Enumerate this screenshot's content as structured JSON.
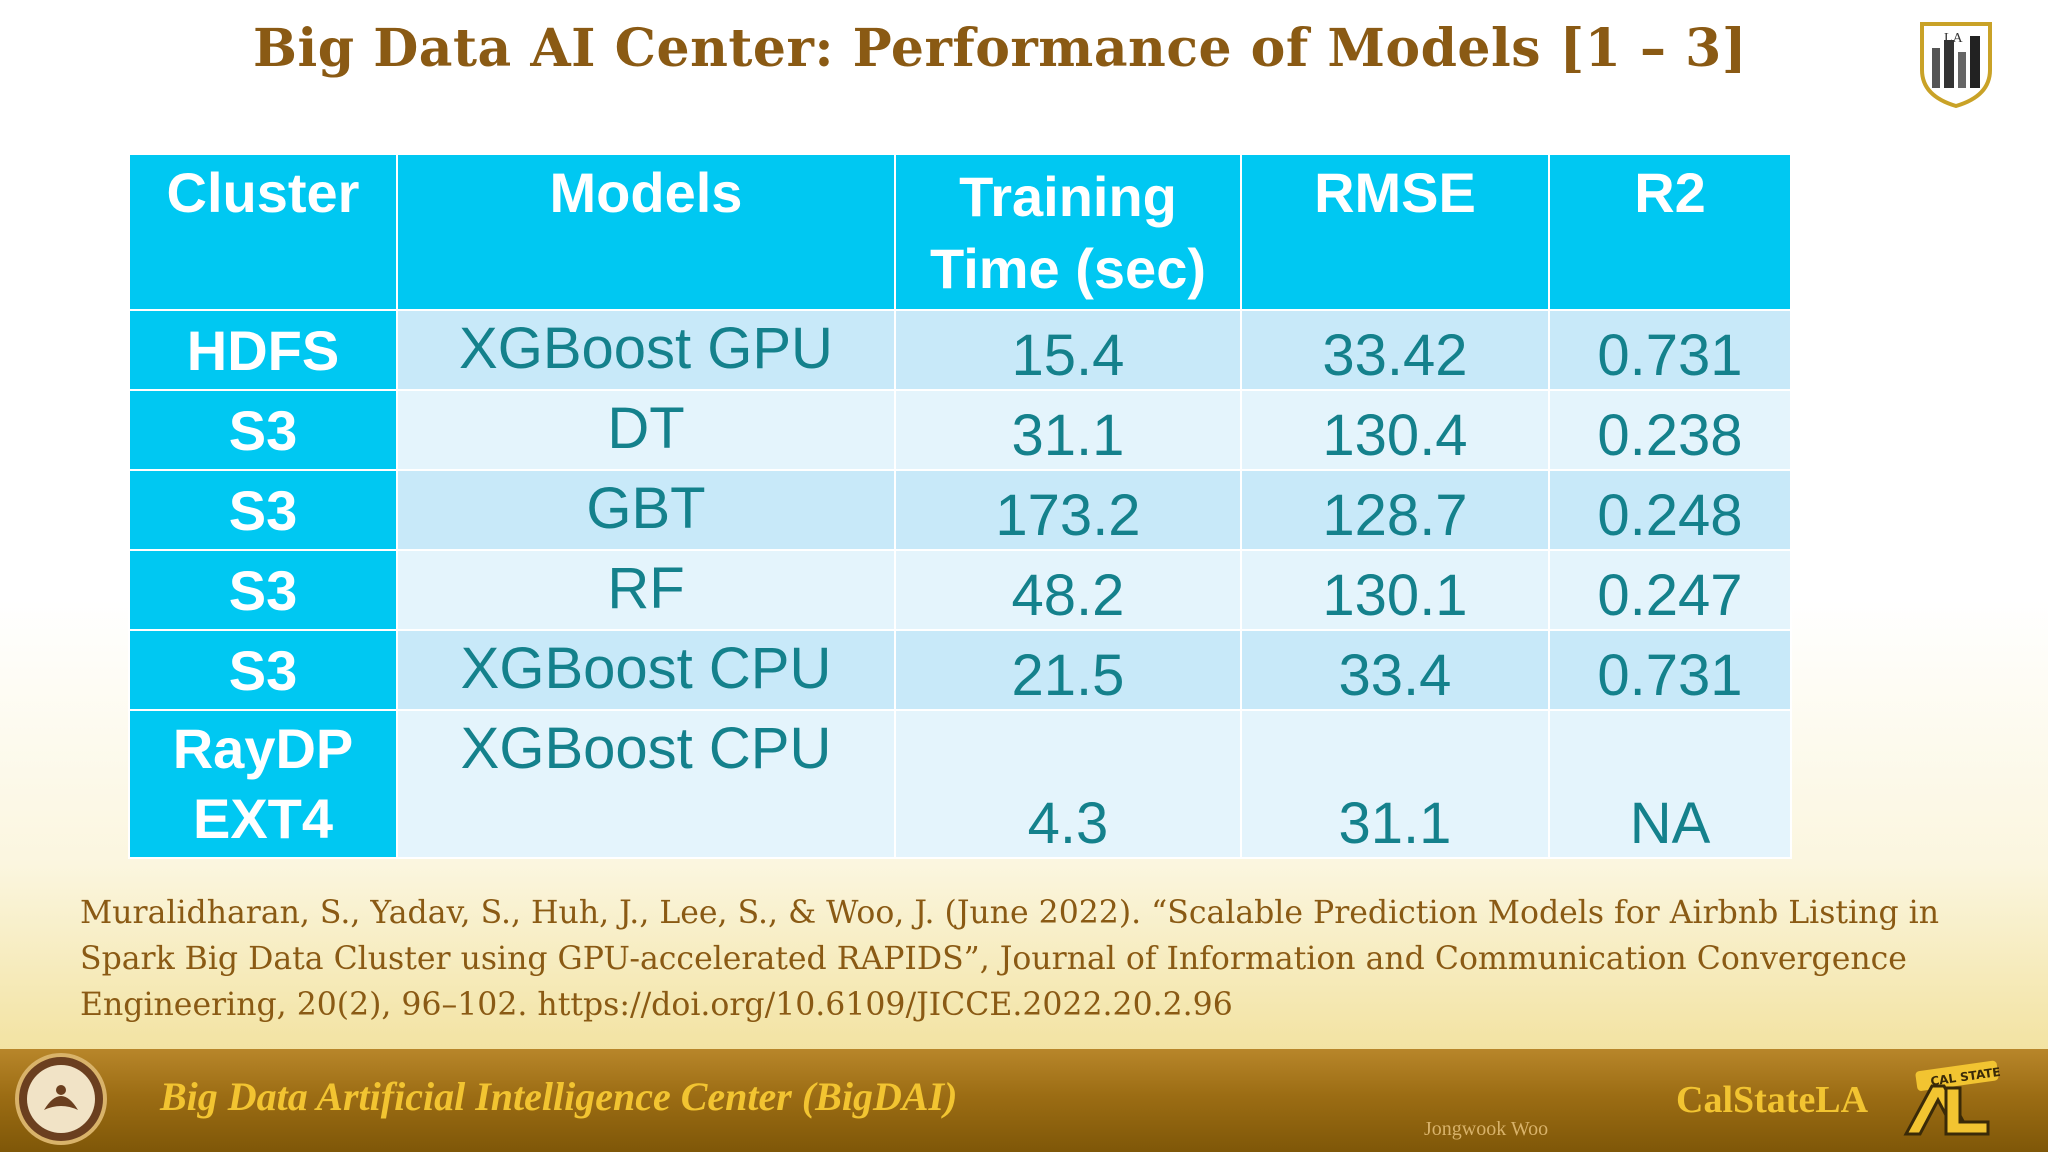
{
  "title": "Big Data AI Center: Performance of Models [1 – 3]",
  "table": {
    "headers": [
      "Cluster",
      "Models",
      "Training Time (sec)",
      "RMSE",
      "R2"
    ],
    "rows": [
      {
        "cluster": "HDFS",
        "model": "XGBoost GPU",
        "training_time": "15.4",
        "rmse": "33.42",
        "r2": "0.731"
      },
      {
        "cluster": "S3",
        "model": "DT",
        "training_time": "31.1",
        "rmse": "130.4",
        "r2": "0.238"
      },
      {
        "cluster": "S3",
        "model": "GBT",
        "training_time": "173.2",
        "rmse": "128.7",
        "r2": "0.248"
      },
      {
        "cluster": "S3",
        "model": "RF",
        "training_time": "48.2",
        "rmse": "130.1",
        "r2": "0.247"
      },
      {
        "cluster": "S3",
        "model": "XGBoost CPU",
        "training_time": "21.5",
        "rmse": "33.4",
        "r2": "0.731"
      },
      {
        "cluster": "RayDP EXT4",
        "model": "XGBoost CPU",
        "training_time": "4.3",
        "rmse": "31.1",
        "r2": "NA"
      }
    ]
  },
  "citation": "Muralidharan, S., Yadav, S., Huh, J., Lee, S., & Woo, J. (June 2022). “Scalable Prediction Models for Airbnb Listing in Spark Big Data Cluster using GPU-accelerated RAPIDS”, Journal of Information and Communication Convergence Engineering, 20(2), 96–102. https://doi.org/10.6109/JICCE.2022.20.2.96",
  "footer": {
    "center_name": "Big Data Artificial Intelligence Center (BigDAI)",
    "author": "Jongwook Woo",
    "university": "CalStateLA",
    "logo_text": "LA",
    "emblem_text": "CAL STATE"
  },
  "colors": {
    "title": "#8a5a14",
    "header_bg": "#00c8f2",
    "row_dark": "#c8e9f9",
    "row_light": "#e4f4fc",
    "cell_text": "#14818c",
    "footer_gold": "#f2c431"
  },
  "icons": [
    "university-logo-icon",
    "bigdai-seal-icon",
    "calstatela-emblem-icon"
  ]
}
